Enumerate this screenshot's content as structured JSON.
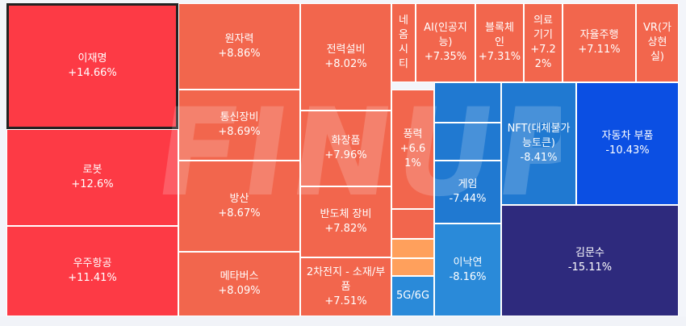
{
  "watermark": "FINUP",
  "colors": {
    "red_strong": "#fd3a45",
    "red": "#f2664d",
    "orange": "#ffa05c",
    "blue_light": "#2a8ad9",
    "blue": "#2079d1",
    "blue_deep": "#0b4fe3",
    "navy": "#2e2a7d"
  },
  "tiles": [
    {
      "id": "이재명",
      "name": "이재명",
      "change": "+14.66%",
      "selected": true
    },
    {
      "id": "로봇",
      "name": "로봇",
      "change": "+12.6%"
    },
    {
      "id": "우주항공",
      "name": "우주항공",
      "change": "+11.41%"
    },
    {
      "id": "원자력",
      "name": "원자력",
      "change": "+8.86%"
    },
    {
      "id": "통신장비",
      "name": "통신장비",
      "change": "+8.69%"
    },
    {
      "id": "방산",
      "name": "방산",
      "change": "+8.67%"
    },
    {
      "id": "메타버스",
      "name": "메타버스",
      "change": "+8.09%"
    },
    {
      "id": "전력설비",
      "name": "전력설비",
      "change": "+8.02%"
    },
    {
      "id": "화장품",
      "name": "화장품",
      "change": "+7.96%"
    },
    {
      "id": "반도체장비",
      "name": "반도체 장비",
      "change": "+7.82%"
    },
    {
      "id": "2차전지",
      "name": "2차전지 - 소재/부\n품",
      "change": "+7.51%"
    },
    {
      "id": "네옴시티",
      "name": "네\n옴\n시\n티",
      "change": ""
    },
    {
      "id": "AI",
      "name": "AI(인공지\n능)",
      "change": "+7.35%"
    },
    {
      "id": "블록체인",
      "name": "블록체\n인",
      "change": "+7.31%"
    },
    {
      "id": "의료기기",
      "name": "의료\n기기",
      "change": "+7.2\n2%"
    },
    {
      "id": "자율주행",
      "name": "자율주행",
      "change": "+7.11%"
    },
    {
      "id": "VR",
      "name": "VR(가\n상현\n실)",
      "change": ""
    },
    {
      "id": "풍력",
      "name": "풍력",
      "change": "+6.6\n1%"
    },
    {
      "id": "5G6G",
      "name": "5G/6G",
      "change": ""
    },
    {
      "id": "게임",
      "name": "게임",
      "change": "-7.44%"
    },
    {
      "id": "이낙연",
      "name": "이낙연",
      "change": "-8.16%"
    },
    {
      "id": "NFT",
      "name": "NFT(대체불가\n능토큰)",
      "change": "-8.41%"
    },
    {
      "id": "자동차부품",
      "name": "자동차 부품",
      "change": "-10.43%"
    },
    {
      "id": "김문수",
      "name": "김문수",
      "change": "-15.11%"
    }
  ]
}
